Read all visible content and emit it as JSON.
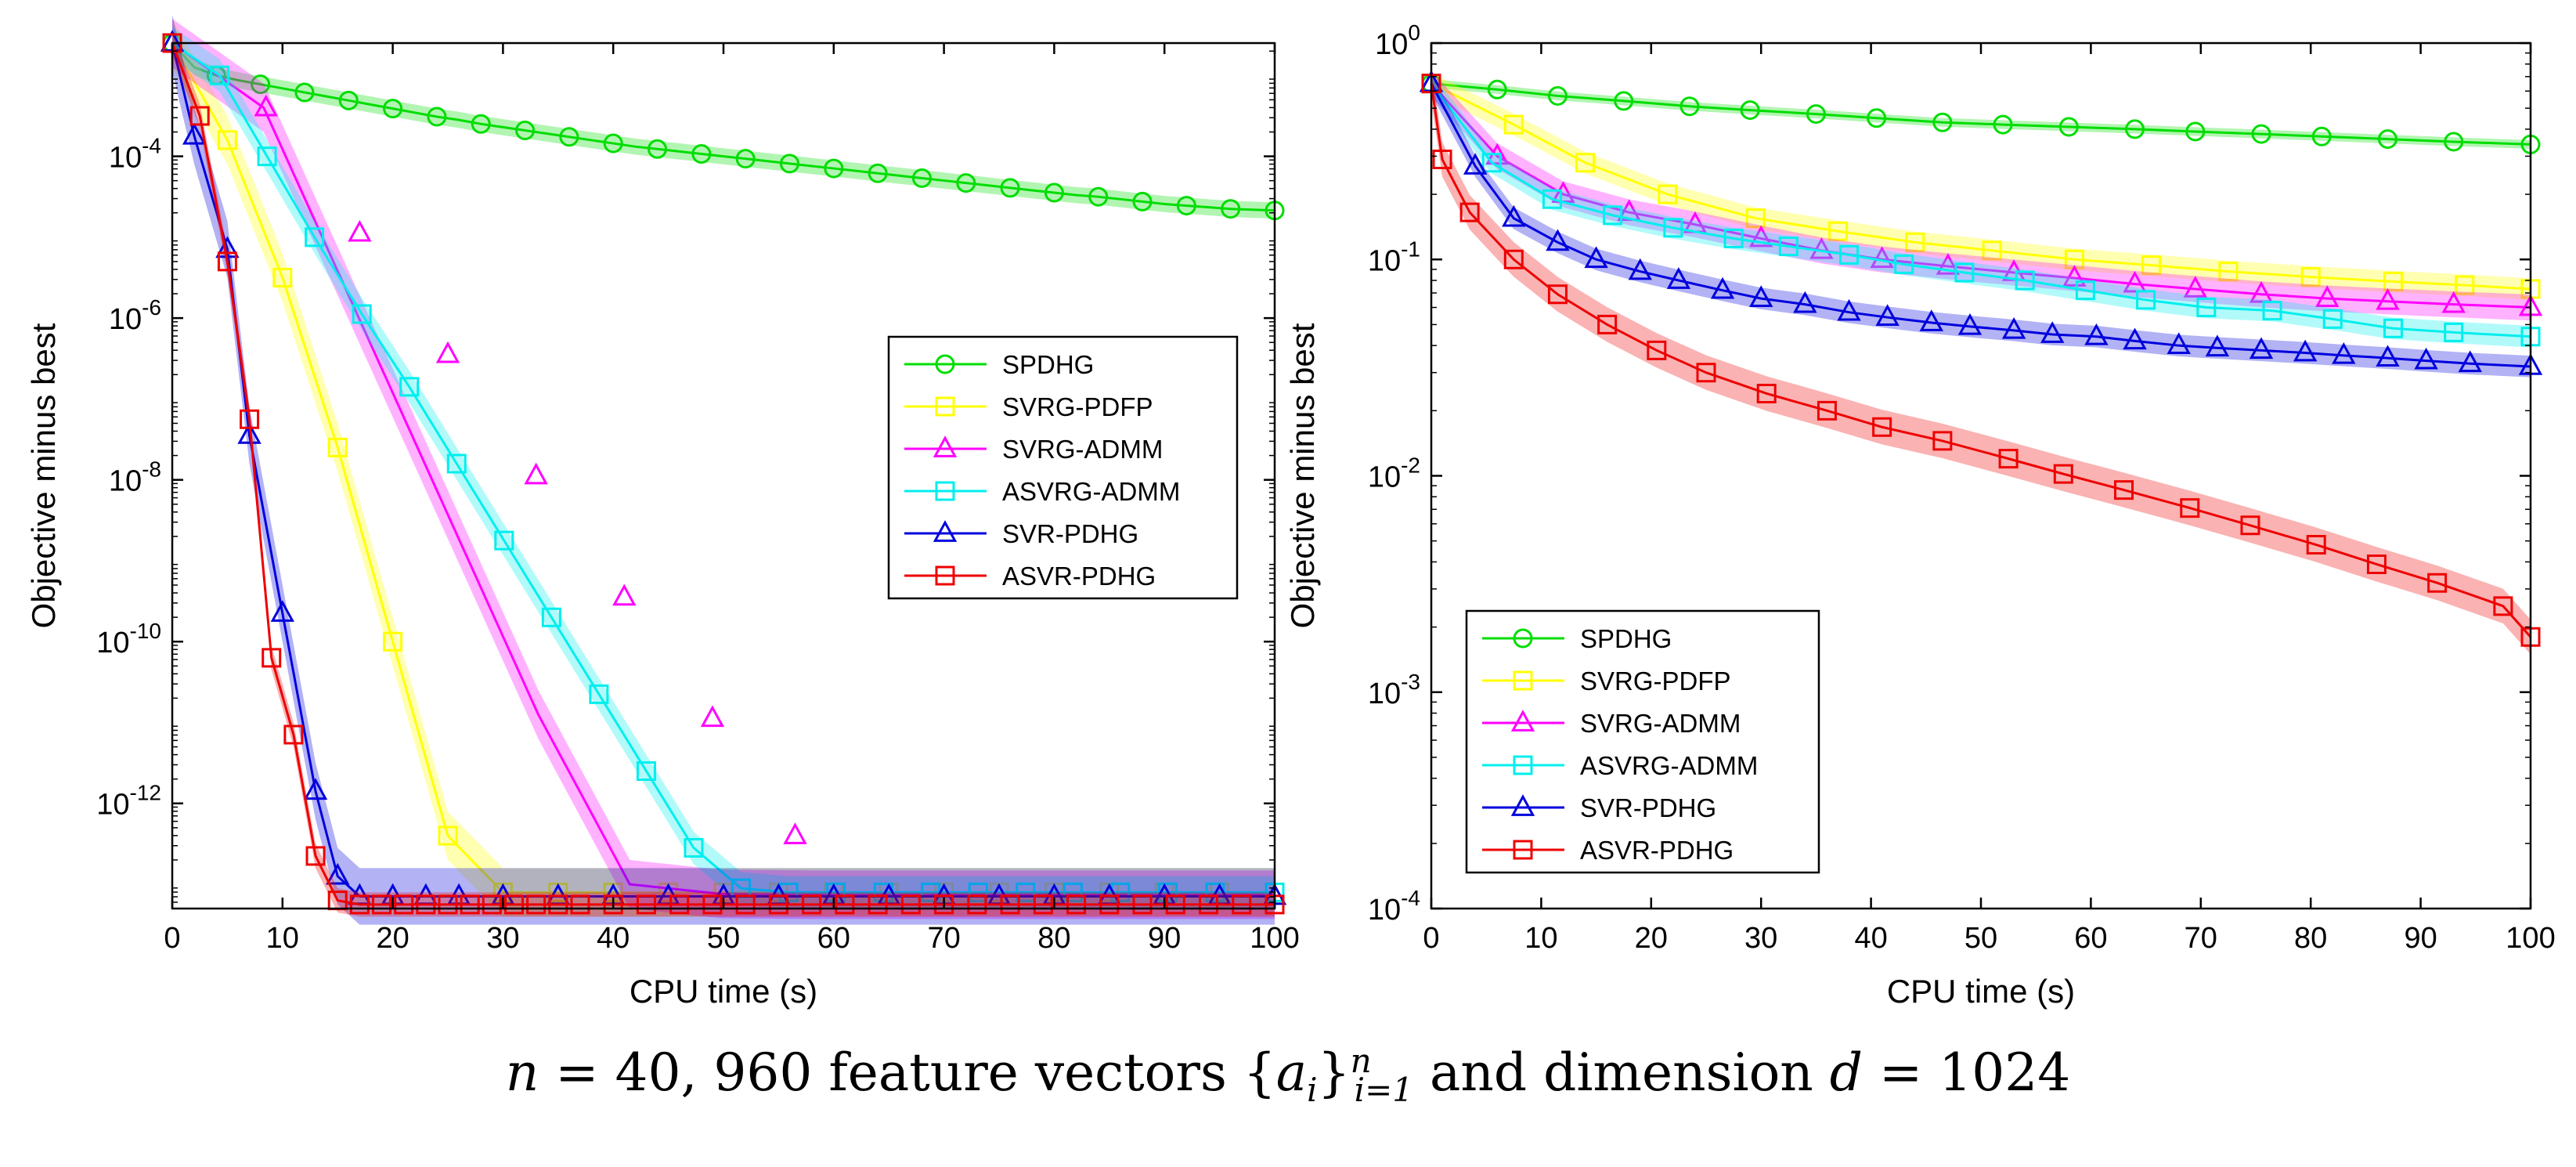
{
  "caption": {
    "n": "n",
    "eq1": " = 40, 960 feature vectors {",
    "a": "a",
    "i": "i",
    "close": "}",
    "sup_n": "n",
    "sub": "i=1",
    "middle": " and dimension ",
    "d": "d",
    "eq2": " = 1024"
  },
  "chart_data": [
    {
      "type": "line",
      "title": "",
      "xlabel": "CPU time (s)",
      "ylabel": "Objective minus best",
      "yscale": "log",
      "xlim": [
        0,
        100
      ],
      "ylim_exp": [
        -13.3,
        -2.6
      ],
      "xticks": [
        0,
        10,
        20,
        30,
        40,
        50,
        60,
        70,
        80,
        90,
        100
      ],
      "yticks": [
        {
          "base": "10",
          "exp": "-4",
          "value_exp": -4
        },
        {
          "base": "10",
          "exp": "-6",
          "value_exp": -6
        },
        {
          "base": "10",
          "exp": "-8",
          "value_exp": -8
        },
        {
          "base": "10",
          "exp": "-10",
          "value_exp": -10
        },
        {
          "base": "10",
          "exp": "-12",
          "value_exp": -12
        }
      ],
      "legend_position": "center-right",
      "series": [
        {
          "name": "SPDHG",
          "color": "#00dd00",
          "marker": "circle",
          "marker_step": 2,
          "x": [
            0,
            2,
            4,
            6,
            8,
            10,
            12,
            14,
            16,
            18,
            20,
            22,
            24,
            26,
            28,
            30,
            32,
            34,
            36,
            38,
            40,
            42,
            44,
            46,
            48,
            50,
            52,
            54,
            56,
            58,
            60,
            62,
            64,
            66,
            68,
            70,
            72,
            74,
            76,
            78,
            80,
            82,
            84,
            86,
            88,
            90,
            92,
            94,
            96,
            98,
            100
          ],
          "log10_y": [
            -2.6,
            -2.9,
            -3.0,
            -3.06,
            -3.11,
            -3.16,
            -3.21,
            -3.26,
            -3.31,
            -3.36,
            -3.41,
            -3.46,
            -3.51,
            -3.55,
            -3.6,
            -3.64,
            -3.68,
            -3.72,
            -3.76,
            -3.8,
            -3.84,
            -3.88,
            -3.91,
            -3.94,
            -3.97,
            -4.0,
            -4.03,
            -4.06,
            -4.09,
            -4.12,
            -4.15,
            -4.18,
            -4.21,
            -4.24,
            -4.27,
            -4.3,
            -4.33,
            -4.36,
            -4.39,
            -4.42,
            -4.45,
            -4.48,
            -4.5,
            -4.53,
            -4.56,
            -4.59,
            -4.61,
            -4.63,
            -4.65,
            -4.66,
            -4.67
          ],
          "band_log10": 0.1
        },
        {
          "name": "SVRG-PDFP",
          "color": "#ffff00",
          "marker": "square",
          "marker_step": 1,
          "x": [
            0,
            5,
            10,
            15,
            20,
            25,
            30,
            35,
            40,
            45,
            50,
            55,
            60,
            65,
            70,
            75,
            80,
            85,
            90,
            95,
            100
          ],
          "log10_y": [
            -2.6,
            -3.8,
            -5.5,
            -7.6,
            -10.0,
            -12.4,
            -13.1,
            -13.1,
            -13.1,
            -13.1,
            -13.1,
            -13.1,
            -13.1,
            -13.1,
            -13.1,
            -13.1,
            -13.1,
            -13.1,
            -13.1,
            -13.1,
            -13.1
          ],
          "band_log10": 0.3
        },
        {
          "name": "SVRG-ADMM",
          "color": "#ff00ff",
          "marker": "triangle",
          "marker_step": 1,
          "x": [
            0,
            8.3,
            16.6,
            24.9,
            33.2,
            41.5,
            49.8,
            58.1,
            66.4,
            74.7,
            83.0,
            91.3,
            100
          ],
          "log10_y": [
            -2.6,
            -3.4,
            -5.9,
            -8.4,
            -10.9,
            -13.0,
            -13.12,
            -13.13,
            -13.13,
            -13.13,
            -13.13,
            -13.13,
            -13.13
          ],
          "band_log10": 0.3,
          "raw_markers": {
            "x": [
              8.5,
              17,
              25,
              33,
              41,
              49,
              56.5
            ],
            "log10_y": [
              -3.4,
              -4.95,
              -6.45,
              -7.95,
              -9.45,
              -10.95,
              -12.4
            ]
          }
        },
        {
          "name": "ASVRG-ADMM",
          "color": "#00eeee",
          "marker": "square",
          "marker_step": 1,
          "x": [
            0,
            4.3,
            8.6,
            12.9,
            17.2,
            21.5,
            25.8,
            30.1,
            34.4,
            38.7,
            43.0,
            47.3,
            51.6,
            55.9,
            60.2,
            64.5,
            68.8,
            73.1,
            77.4,
            81.7,
            86.0,
            90.3,
            94.6,
            100
          ],
          "log10_y": [
            -2.6,
            -3.0,
            -4.0,
            -5.0,
            -5.95,
            -6.85,
            -7.8,
            -8.75,
            -9.7,
            -10.65,
            -11.6,
            -12.55,
            -13.05,
            -13.1,
            -13.1,
            -13.1,
            -13.1,
            -13.1,
            -13.1,
            -13.1,
            -13.1,
            -13.1,
            -13.1,
            -13.1
          ],
          "band_log10": 0.2
        },
        {
          "name": "SVR-PDHG",
          "color": "#0000dd",
          "marker": "triangle",
          "marker_step": 1,
          "x": [
            0,
            2,
            5,
            7,
            10,
            13,
            15,
            17,
            20,
            23,
            26,
            30,
            35,
            40,
            45,
            50,
            55,
            60,
            65,
            70,
            75,
            80,
            85,
            90,
            95,
            100
          ],
          "log10_y": [
            -2.6,
            -3.75,
            -5.15,
            -7.45,
            -9.65,
            -11.85,
            -12.9,
            -13.15,
            -13.15,
            -13.15,
            -13.15,
            -13.15,
            -13.15,
            -13.15,
            -13.15,
            -13.15,
            -13.15,
            -13.15,
            -13.15,
            -13.15,
            -13.15,
            -13.15,
            -13.15,
            -13.15,
            -13.15,
            -13.15
          ],
          "band_log10": 0.35
        },
        {
          "name": "ASVR-PDHG",
          "color": "#ee0000",
          "marker": "square",
          "marker_step": 1,
          "x": [
            0,
            2.5,
            5,
            7,
            9,
            11,
            13,
            15,
            17,
            19,
            21,
            23,
            25,
            27,
            29,
            31,
            33,
            35,
            37,
            40,
            43,
            46,
            49,
            52,
            55,
            58,
            61,
            64,
            67,
            70,
            73,
            76,
            79,
            82,
            85,
            88,
            91,
            94,
            97,
            100
          ],
          "log10_y": [
            -2.6,
            -3.5,
            -5.3,
            -7.25,
            -10.2,
            -11.15,
            -12.65,
            -13.2,
            -13.25,
            -13.25,
            -13.25,
            -13.25,
            -13.25,
            -13.25,
            -13.25,
            -13.25,
            -13.25,
            -13.25,
            -13.25,
            -13.25,
            -13.25,
            -13.25,
            -13.25,
            -13.25,
            -13.25,
            -13.25,
            -13.25,
            -13.25,
            -13.25,
            -13.25,
            -13.25,
            -13.25,
            -13.25,
            -13.25,
            -13.25,
            -13.25,
            -13.25,
            -13.25,
            -13.25,
            -13.25
          ],
          "band_log10": 0.15
        }
      ]
    },
    {
      "type": "line",
      "title": "",
      "xlabel": "CPU time (s)",
      "ylabel": "Objective minus best",
      "yscale": "log",
      "xlim": [
        0,
        100
      ],
      "ylim_exp": [
        -4,
        0
      ],
      "xticks": [
        0,
        10,
        20,
        30,
        40,
        50,
        60,
        70,
        80,
        90,
        100
      ],
      "yticks": [
        {
          "base": "10",
          "exp": "0",
          "value_exp": 0
        },
        {
          "base": "10",
          "exp": "-1",
          "value_exp": -1
        },
        {
          "base": "10",
          "exp": "-2",
          "value_exp": -2
        },
        {
          "base": "10",
          "exp": "-3",
          "value_exp": -3
        },
        {
          "base": "10",
          "exp": "-4",
          "value_exp": -4
        }
      ],
      "legend_position": "bottom-left",
      "series": [
        {
          "name": "SPDHG",
          "color": "#00dd00",
          "marker": "circle",
          "marker_step": 1,
          "x": [
            0,
            6,
            11.5,
            17.5,
            23.5,
            29,
            35,
            40.5,
            46.5,
            52,
            58,
            64,
            69.5,
            75.5,
            81,
            87,
            93,
            100
          ],
          "y": [
            0.65,
            0.61,
            0.57,
            0.54,
            0.51,
            0.49,
            0.47,
            0.45,
            0.43,
            0.42,
            0.41,
            0.4,
            0.39,
            0.38,
            0.37,
            0.36,
            0.35,
            0.34
          ],
          "band_log10": 0.02
        },
        {
          "name": "SVRG-PDFP",
          "color": "#ffff00",
          "marker": "square",
          "marker_step": 1,
          "x": [
            0,
            7.5,
            14,
            21.5,
            29.5,
            37,
            44,
            51,
            58.5,
            65.5,
            72.5,
            80,
            87.5,
            94,
            100
          ],
          "y": [
            0.65,
            0.42,
            0.28,
            0.2,
            0.155,
            0.135,
            0.12,
            0.11,
            0.1,
            0.094,
            0.088,
            0.083,
            0.079,
            0.076,
            0.073
          ],
          "band_log10": 0.05
        },
        {
          "name": "SVRG-ADMM",
          "color": "#ff00ff",
          "marker": "triangle",
          "marker_step": 1,
          "x": [
            0,
            6,
            12,
            18,
            24,
            30,
            35.5,
            41,
            47,
            53,
            58.5,
            64,
            69.5,
            75.5,
            81.5,
            87,
            93,
            100
          ],
          "y": [
            0.65,
            0.3,
            0.2,
            0.165,
            0.145,
            0.125,
            0.11,
            0.1,
            0.093,
            0.087,
            0.082,
            0.077,
            0.073,
            0.069,
            0.066,
            0.064,
            0.062,
            0.06
          ],
          "band_log10": 0.06
        },
        {
          "name": "ASVRG-ADMM",
          "color": "#00eeee",
          "marker": "square",
          "marker_step": 1,
          "x": [
            0,
            5.5,
            11,
            16.5,
            22,
            27.5,
            32.5,
            38,
            43,
            48.5,
            54,
            59.5,
            65,
            70.5,
            76.5,
            82,
            87.5,
            93,
            100
          ],
          "y": [
            0.65,
            0.28,
            0.19,
            0.16,
            0.14,
            0.125,
            0.115,
            0.105,
            0.095,
            0.087,
            0.08,
            0.072,
            0.065,
            0.06,
            0.058,
            0.053,
            0.048,
            0.046,
            0.044
          ],
          "band_log10": 0.05
        },
        {
          "name": "SVR-PDHG",
          "color": "#0000dd",
          "marker": "triangle",
          "marker_step": 1,
          "x": [
            0,
            4,
            7.5,
            11.5,
            15,
            19,
            22.5,
            26.5,
            30,
            34,
            38,
            41.5,
            45.5,
            49,
            53,
            56.5,
            60.5,
            64,
            68,
            71.5,
            75.5,
            79.5,
            83,
            87,
            90.5,
            94.5,
            100
          ],
          "y": [
            0.65,
            0.27,
            0.155,
            0.12,
            0.1,
            0.088,
            0.08,
            0.072,
            0.066,
            0.062,
            0.057,
            0.054,
            0.051,
            0.049,
            0.047,
            0.045,
            0.044,
            0.042,
            0.04,
            0.039,
            0.038,
            0.037,
            0.036,
            0.035,
            0.034,
            0.033,
            0.032
          ],
          "band_log10": 0.05
        },
        {
          "name": "ASVR-PDHG",
          "color": "#ee0000",
          "marker": "square",
          "marker_step": 1,
          "x": [
            0,
            1,
            3.5,
            7.5,
            11.5,
            16,
            20.5,
            25,
            30.5,
            36,
            41,
            46.5,
            52.5,
            57.5,
            63,
            69,
            74.5,
            80.5,
            86,
            91.5,
            97.5,
            100
          ],
          "y": [
            0.65,
            0.29,
            0.165,
            0.1,
            0.069,
            0.05,
            0.038,
            0.03,
            0.024,
            0.02,
            0.0168,
            0.0145,
            0.012,
            0.0102,
            0.0086,
            0.0071,
            0.0059,
            0.0048,
            0.0039,
            0.0032,
            0.0025,
            0.0018
          ],
          "band_log10": 0.08
        }
      ]
    }
  ]
}
